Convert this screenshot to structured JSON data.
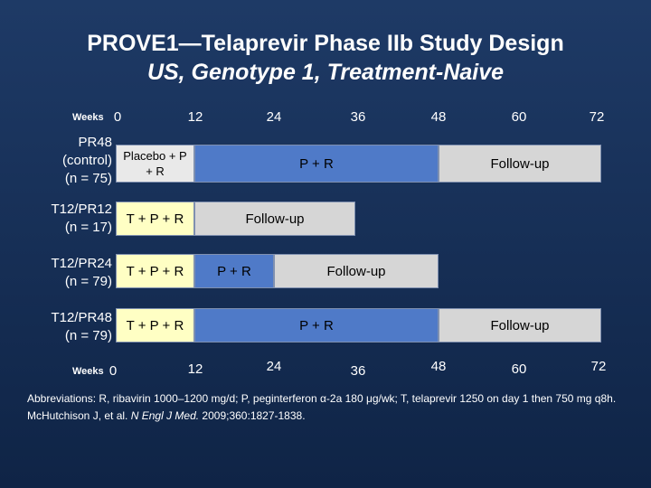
{
  "title": {
    "line1": "PROVE1—Telaprevir Phase IIb Study Design",
    "line2": "US, Genotype 1, Treatment-Naive"
  },
  "axis": {
    "label": "Weeks",
    "ticks": [
      "0",
      "12",
      "24",
      "36",
      "48",
      "60",
      "72"
    ]
  },
  "arms": [
    {
      "label_line1": "PR48",
      "label_line2": "(control)",
      "label_line3": "(n = 75)",
      "segments": [
        "Placebo + P + R",
        "P + R",
        "Follow-up"
      ]
    },
    {
      "label_line1": "T12/PR12",
      "label_line2": "(n = 17)",
      "segments": [
        "T + P + R",
        "Follow-up"
      ]
    },
    {
      "label_line1": "T12/PR24",
      "label_line2": "(n = 79)",
      "segments": [
        "T + P + R",
        "P + R",
        "Follow-up"
      ]
    },
    {
      "label_line1": "T12/PR48",
      "label_line2": "(n = 79)",
      "segments": [
        "T + P + R",
        "P + R",
        "Follow-up"
      ]
    }
  ],
  "footnote": {
    "abbreviations": "Abbreviations: R, ribavirin 1000–1200 mg/d; P, peginterferon α-2a 180 μg/wk; T, telaprevir 1250 on day 1 then 750 mg q8h.",
    "citation_authors": "McHutchison J, et al. ",
    "citation_journal": "N Engl J Med.",
    "citation_rest": " 2009;360:1827-1838."
  },
  "colors": {
    "background": "#1e3a66",
    "tpr": "#ffffc4",
    "pr": "#4f7ac8",
    "followup": "#d6d6d6",
    "placebo": "#e9e9e9"
  }
}
